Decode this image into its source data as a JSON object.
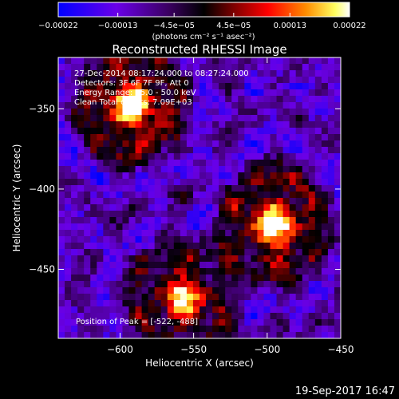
{
  "chart_data": {
    "type": "heatmap",
    "title": "Reconstructed RHESSI Image",
    "xlabel": "Heliocentric X (arcsec)",
    "ylabel": "Heliocentric Y (arcsec)",
    "xlim": [
      -642,
      -450
    ],
    "ylim": [
      -493,
      -318
    ],
    "x_ticks": [
      -600,
      -550,
      -500,
      -450
    ],
    "y_ticks": [
      -350,
      -400,
      -450
    ],
    "x_tick_labels": [
      "−600",
      "−550",
      "−500",
      "−450"
    ],
    "y_tick_labels": [
      "−350",
      "−400",
      "−450"
    ],
    "colorbar": {
      "range": [
        -0.00022,
        0.00022
      ],
      "ticks": [
        -0.00022,
        -0.00013,
        -4.5e-05,
        4.5e-05,
        0.00013,
        0.00022
      ],
      "tick_labels": [
        "−0.00022",
        "−0.00013",
        "−4.5e−05",
        "4.5e−05",
        "0.00013",
        "0.00022"
      ],
      "unit_label": "(photons cm⁻² s⁻¹ asec⁻²)",
      "colors": [
        "#0000ff",
        "#6a00e8",
        "#3a0060",
        "#000000",
        "#7a0000",
        "#ff0000",
        "#ff8c00",
        "#ffff60",
        "#ffffff"
      ]
    },
    "sources": [
      {
        "x": -592,
        "y": -348,
        "strength": 1.0
      },
      {
        "x": -495,
        "y": -422,
        "strength": 1.0
      },
      {
        "x": -558,
        "y": -468,
        "strength": 0.85
      }
    ],
    "annotations": [
      "27-Dec-2014 08:17:24.000 to 08:27:24.000",
      "Detectors: 3F 6F 7F 9F, Att 0",
      "Energy Range: 25.0 - 50.0 keV",
      "Clean    Total counts: 7.09E+03"
    ],
    "peak_label": "Position of Peak = [-522, -488]",
    "timestamp": "19-Sep-2017 16:47"
  }
}
